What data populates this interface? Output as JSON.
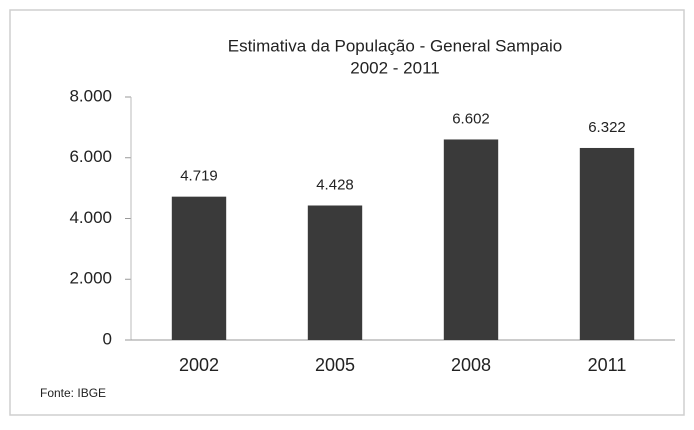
{
  "chart_data": {
    "type": "bar",
    "title": "Estimativa da População - General Sampaio",
    "subtitle": "2002 - 2011",
    "categories": [
      "2002",
      "2005",
      "2008",
      "2011"
    ],
    "values": [
      4719,
      4428,
      6602,
      6322
    ],
    "value_labels": [
      "4.719",
      "4.428",
      "6.602",
      "6.322"
    ],
    "color": "#3a3a3a",
    "ylim": [
      0,
      8000
    ],
    "yticks": [
      0,
      {
        "value": 2000,
        "label": "2.000"
      },
      {
        "value": 4000,
        "label": "4.000"
      },
      {
        "value": 6000,
        "label": "6.000"
      },
      {
        "value": 8000,
        "label": "8.000"
      }
    ],
    "grid": false,
    "source": "Fonte: IBGE"
  }
}
